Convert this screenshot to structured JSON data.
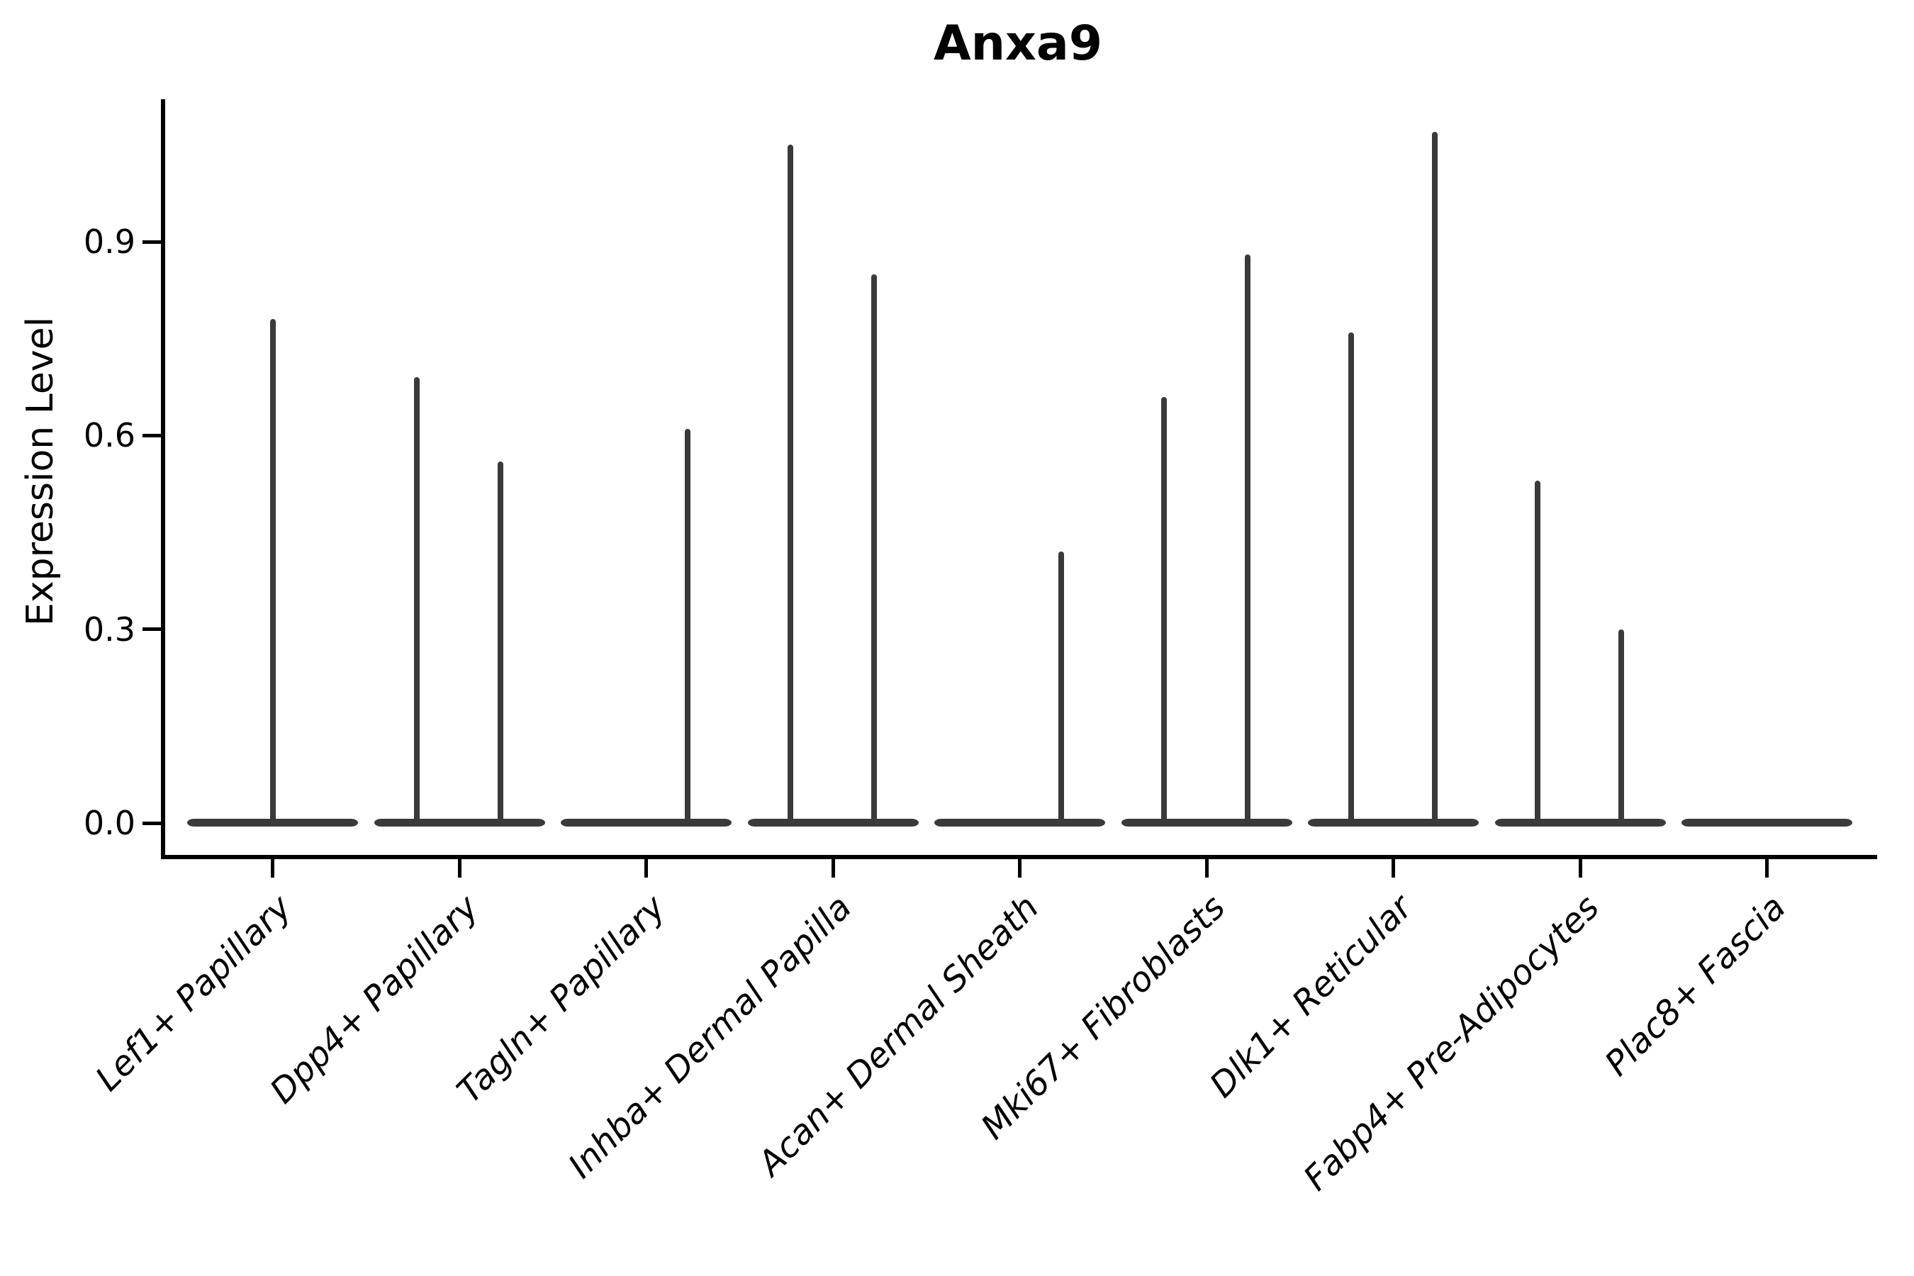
{
  "figure": {
    "title": "Anxa9"
  },
  "y_axis": {
    "label": "Expression Level",
    "tick_labels": [
      "0.0",
      "0.3",
      "0.6",
      "0.9"
    ]
  },
  "x_axis": {
    "categories": [
      "Lef1+ Papillary",
      "Dpp4+ Papillary",
      "Tagln+ Papillary",
      "Inhba+ Dermal Papilla",
      "Acan+ Dermal Sheath",
      "Mki67+ Fibroblasts",
      "Dlk1+ Reticular",
      "Fabp4+ Pre-Adipocytes",
      "Plac8+ Fascia"
    ]
  },
  "style": {
    "violin_color": "#3a3a3a",
    "axis_color": "#000000",
    "text_color": "#000000",
    "background": "#ffffff"
  },
  "chart_data": {
    "type": "violin",
    "title": "Anxa9",
    "ylabel": "Expression Level",
    "xlabel": "",
    "ylim": [
      0,
      1.12
    ],
    "yticks": [
      0.0,
      0.3,
      0.6,
      0.9
    ],
    "grid": false,
    "legend": false,
    "categories": [
      "Lef1+ Papillary",
      "Dpp4+ Papillary",
      "Tagln+ Papillary",
      "Inhba+ Dermal Papilla",
      "Acan+ Dermal Sheath",
      "Mki67+ Fibroblasts",
      "Dlk1+ Reticular",
      "Fabp4+ Pre-Adipocytes",
      "Plac8+ Fascia"
    ],
    "violins": [
      {
        "category": "Lef1+ Papillary",
        "spikes": [
          {
            "group": "center",
            "max": 0.78
          }
        ]
      },
      {
        "category": "Dpp4+ Papillary",
        "spikes": [
          {
            "group": "left",
            "max": 0.69
          },
          {
            "group": "right",
            "max": 0.56
          }
        ]
      },
      {
        "category": "Tagln+ Papillary",
        "spikes": [
          {
            "group": "right",
            "max": 0.61
          }
        ]
      },
      {
        "category": "Inhba+ Dermal Papilla",
        "spikes": [
          {
            "group": "left",
            "max": 1.05
          },
          {
            "group": "right",
            "max": 0.85
          }
        ]
      },
      {
        "category": "Acan+ Dermal Sheath",
        "spikes": [
          {
            "group": "right",
            "max": 0.42
          }
        ]
      },
      {
        "category": "Mki67+ Fibroblasts",
        "spikes": [
          {
            "group": "left",
            "max": 0.66
          },
          {
            "group": "right",
            "max": 0.88
          }
        ]
      },
      {
        "category": "Dlk1+ Reticular",
        "spikes": [
          {
            "group": "left",
            "max": 0.76
          },
          {
            "group": "right",
            "max": 1.07
          }
        ]
      },
      {
        "category": "Fabp4+ Pre-Adipocytes",
        "spikes": [
          {
            "group": "left",
            "max": 0.53
          },
          {
            "group": "right",
            "max": 0.3
          }
        ]
      },
      {
        "category": "Plac8+ Fascia",
        "spikes": []
      }
    ]
  }
}
